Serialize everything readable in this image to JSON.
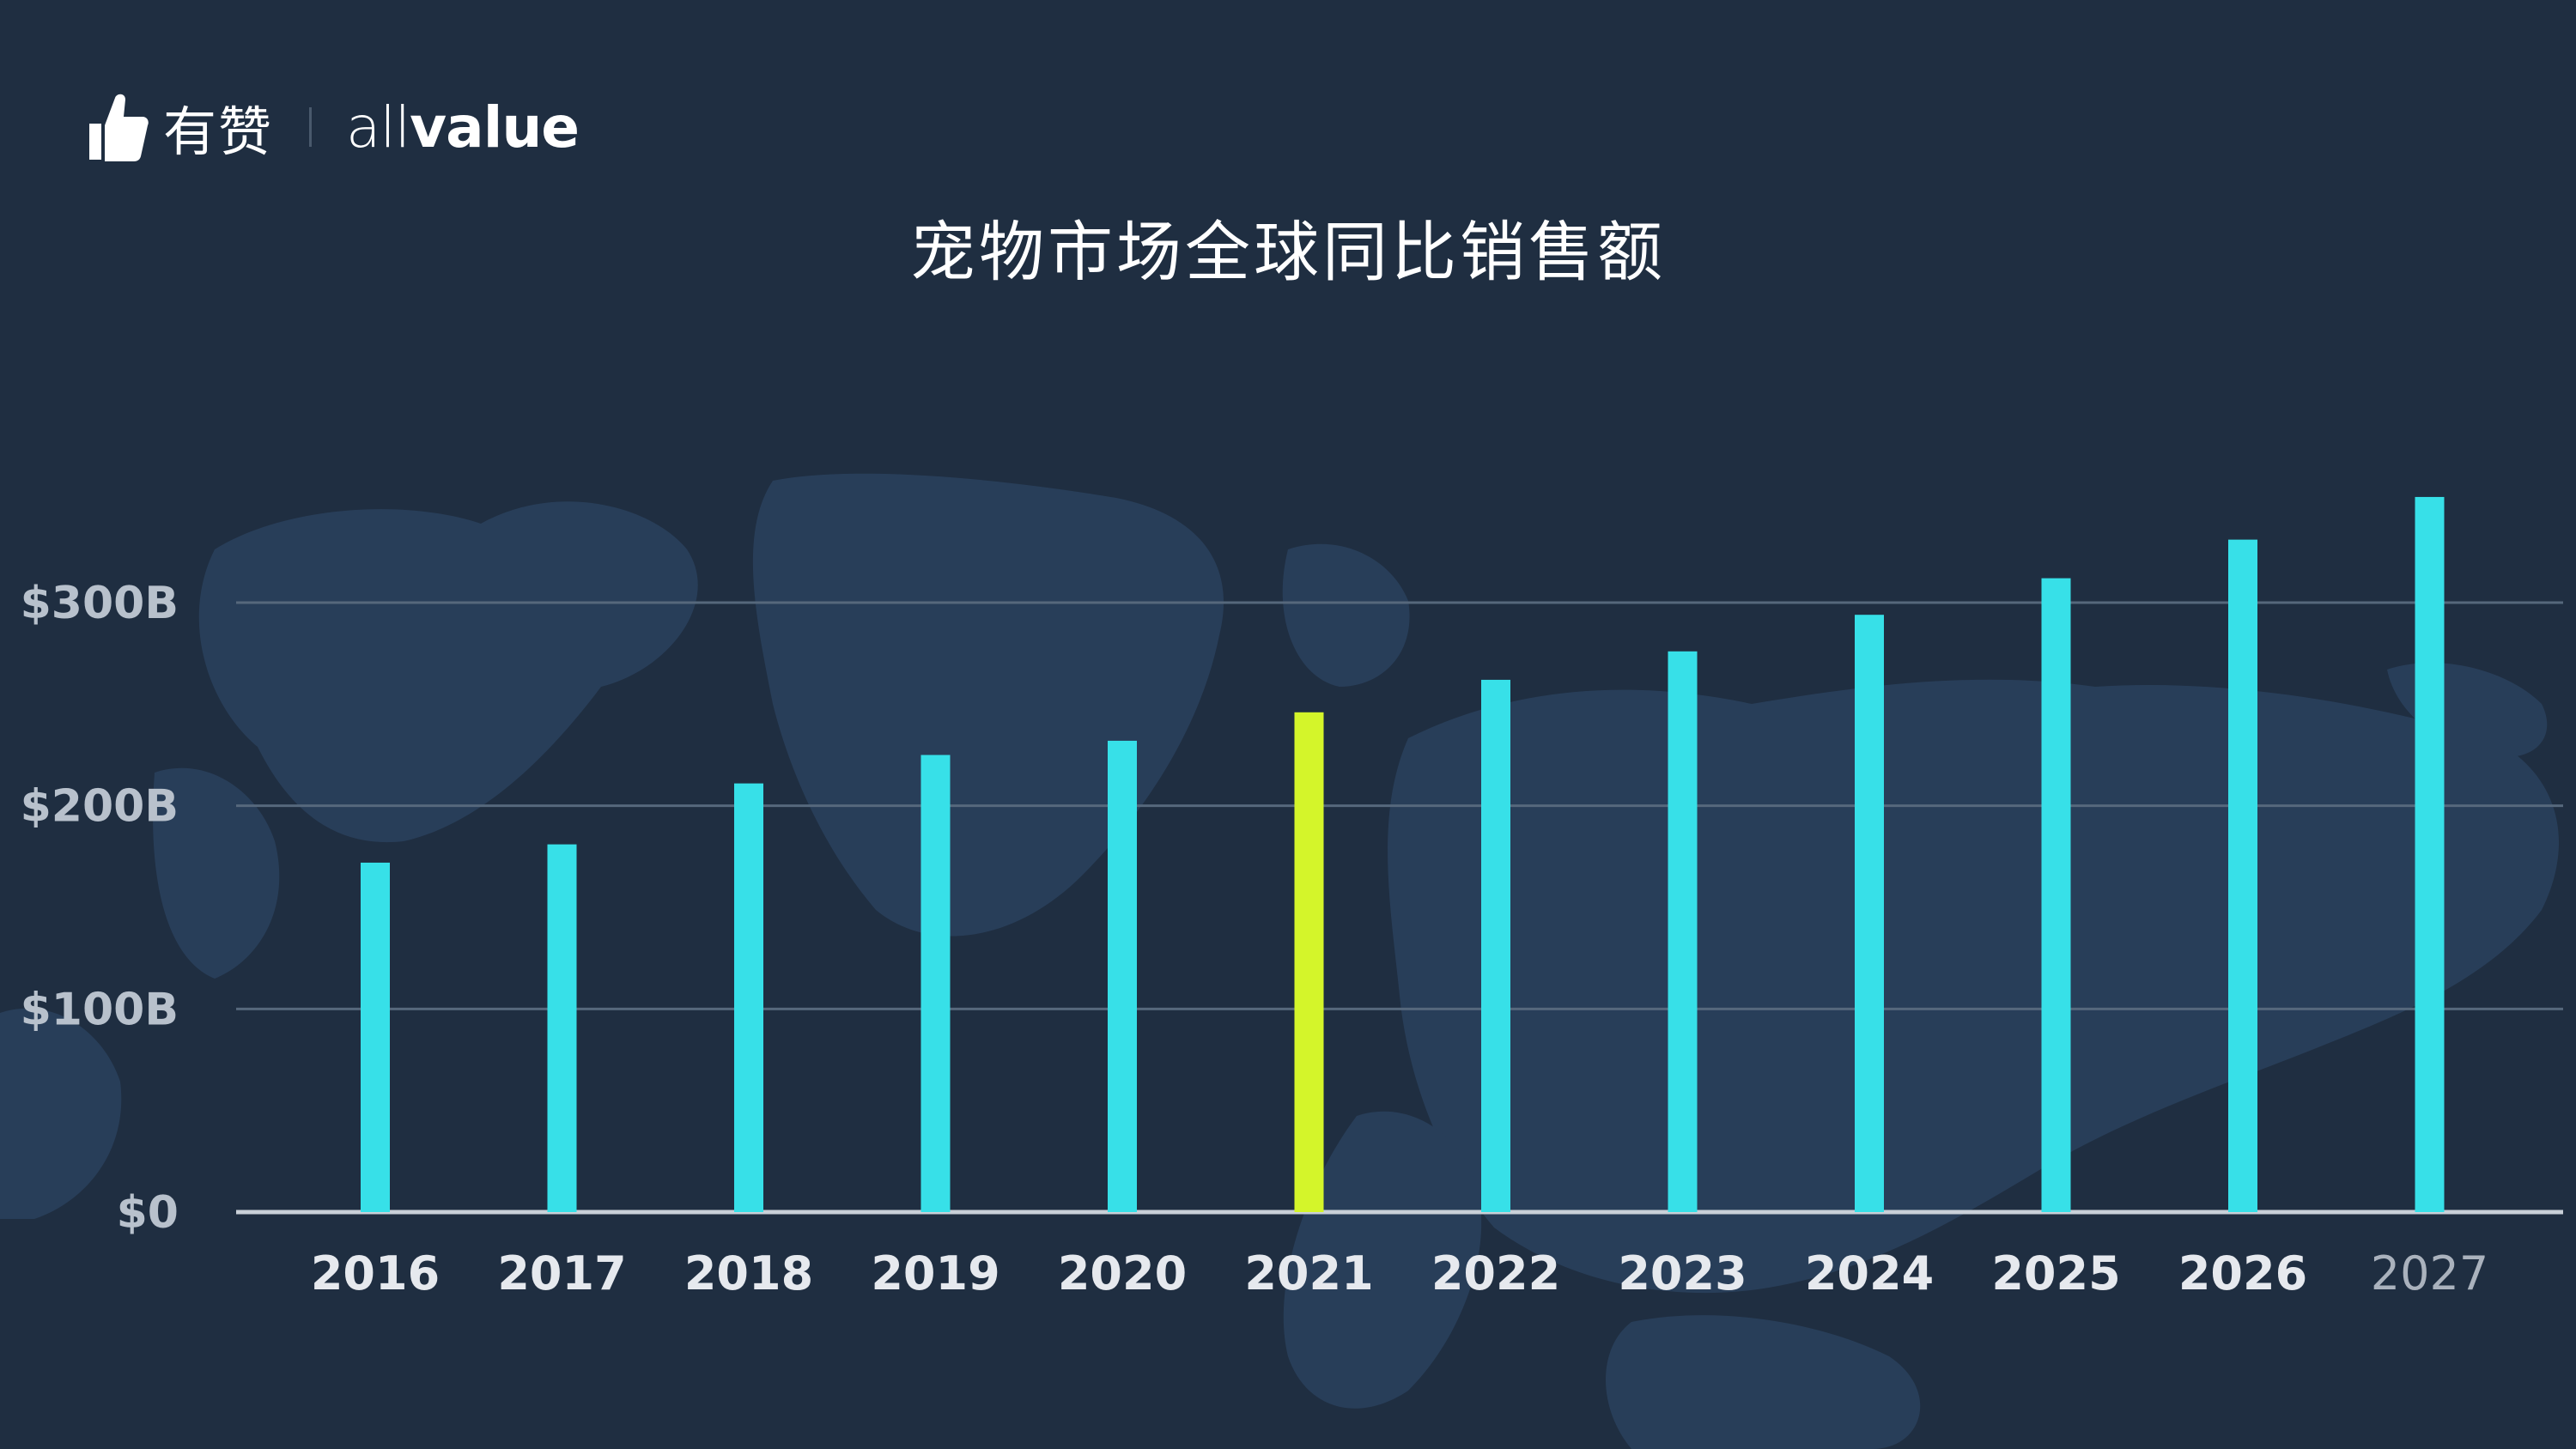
{
  "brand": {
    "name_cn": "有赞",
    "name_en_thin": "all",
    "name_en_bold": "value"
  },
  "chart_data": {
    "type": "bar",
    "title": "宠物市场全球同比销售额",
    "categories": [
      "2016",
      "2017",
      "2018",
      "2019",
      "2020",
      "2021",
      "2022",
      "2023",
      "2024",
      "2025",
      "2026",
      "2027"
    ],
    "values": [
      172,
      181,
      211,
      225,
      232,
      246,
      262,
      276,
      294,
      312,
      331,
      352
    ],
    "ylim": [
      0,
      360
    ],
    "yticks": [
      {
        "value": 0,
        "label": "$0"
      },
      {
        "value": 100,
        "label": "$100B"
      },
      {
        "value": 200,
        "label": "$200B"
      },
      {
        "value": 300,
        "label": "$300B"
      }
    ],
    "grid": true,
    "bar_color": "#37e0e8",
    "highlight": {
      "category": "2021",
      "color": "#d4f52a"
    },
    "grid_color": "#56687c",
    "axis_color": "#c9d0d8"
  },
  "colors": {
    "background": "#1f2e41",
    "map": "#2c4462"
  }
}
